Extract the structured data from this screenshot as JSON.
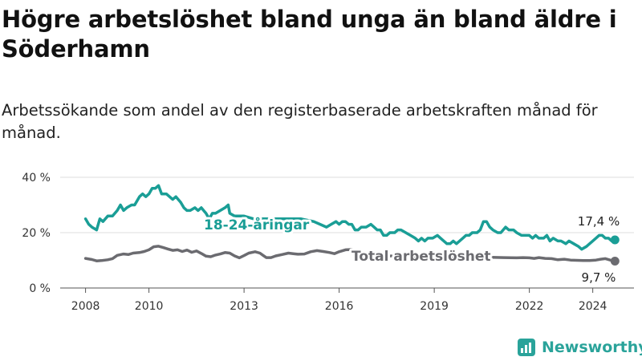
{
  "title": "Högre arbetslöshet bland unga än bland äldre i Söderhamn",
  "subtitle": "Arbetssökande som andel av den registerbaserade arbetskraften månad för månad.",
  "brand": "Newsworthy",
  "colors": {
    "youth": "#1a9e96",
    "total": "#6b6b70",
    "grid": "#dcdcdc",
    "brand": "#2aa39a"
  },
  "chart_data": {
    "type": "line",
    "x_tick_labels": [
      "2008",
      "2010",
      "2013",
      "2016",
      "2019",
      "2022",
      "2024"
    ],
    "x_tick_values": [
      2008,
      2010,
      2013,
      2016,
      2019,
      2022,
      2024
    ],
    "y_tick_labels": [
      "0 %",
      "20 %",
      "40 %"
    ],
    "y_tick_values": [
      0,
      20,
      40
    ],
    "xlim": [
      2007.2,
      2025.3
    ],
    "ylim": [
      0,
      40
    ],
    "grid": "horizontal",
    "end_labels": {
      "youth": "17,4 %",
      "total": "9,7 %"
    },
    "series": [
      {
        "key": "youth",
        "name": "18–24-åringar",
        "points": [
          [
            2008.0,
            25
          ],
          [
            2008.1,
            23
          ],
          [
            2008.2,
            22
          ],
          [
            2008.35,
            21
          ],
          [
            2008.45,
            25
          ],
          [
            2008.55,
            24
          ],
          [
            2008.7,
            26
          ],
          [
            2008.85,
            26
          ],
          [
            2009.0,
            28
          ],
          [
            2009.1,
            30
          ],
          [
            2009.2,
            28
          ],
          [
            2009.3,
            29
          ],
          [
            2009.45,
            30
          ],
          [
            2009.55,
            30
          ],
          [
            2009.7,
            33
          ],
          [
            2009.8,
            34
          ],
          [
            2009.9,
            33
          ],
          [
            2010.0,
            34
          ],
          [
            2010.1,
            36
          ],
          [
            2010.2,
            36
          ],
          [
            2010.3,
            37
          ],
          [
            2010.4,
            34
          ],
          [
            2010.55,
            34
          ],
          [
            2010.65,
            33
          ],
          [
            2010.75,
            32
          ],
          [
            2010.85,
            33
          ],
          [
            2011.0,
            31
          ],
          [
            2011.1,
            29
          ],
          [
            2011.2,
            28
          ],
          [
            2011.3,
            28
          ],
          [
            2011.45,
            29
          ],
          [
            2011.55,
            28
          ],
          [
            2011.65,
            29
          ],
          [
            2011.8,
            27
          ],
          [
            2011.9,
            25
          ],
          [
            2012.0,
            27
          ],
          [
            2012.1,
            27
          ],
          [
            2012.25,
            28
          ],
          [
            2012.4,
            29
          ],
          [
            2012.5,
            30
          ],
          [
            2012.55,
            27
          ],
          [
            2012.7,
            26
          ],
          [
            2013.0,
            26
          ],
          [
            2013.3,
            25
          ],
          [
            2013.6,
            25
          ],
          [
            2014.0,
            25
          ],
          [
            2014.4,
            25
          ],
          [
            2014.8,
            25
          ],
          [
            2015.2,
            24
          ],
          [
            2015.4,
            23
          ],
          [
            2015.6,
            22
          ],
          [
            2015.75,
            23
          ],
          [
            2015.9,
            24
          ],
          [
            2016.0,
            23
          ],
          [
            2016.1,
            24
          ],
          [
            2016.2,
            24
          ],
          [
            2016.3,
            23
          ],
          [
            2016.4,
            23
          ],
          [
            2016.5,
            21
          ],
          [
            2016.6,
            21
          ],
          [
            2016.7,
            22
          ],
          [
            2016.85,
            22
          ],
          [
            2017.0,
            23
          ],
          [
            2017.1,
            22
          ],
          [
            2017.2,
            21
          ],
          [
            2017.3,
            21
          ],
          [
            2017.4,
            19
          ],
          [
            2017.5,
            19
          ],
          [
            2017.6,
            20
          ],
          [
            2017.75,
            20
          ],
          [
            2017.85,
            21
          ],
          [
            2017.95,
            21
          ],
          [
            2018.1,
            20
          ],
          [
            2018.25,
            19
          ],
          [
            2018.4,
            18
          ],
          [
            2018.5,
            17
          ],
          [
            2018.6,
            18
          ],
          [
            2018.7,
            17
          ],
          [
            2018.8,
            18
          ],
          [
            2018.95,
            18
          ],
          [
            2019.1,
            19
          ],
          [
            2019.2,
            18
          ],
          [
            2019.3,
            17
          ],
          [
            2019.4,
            16
          ],
          [
            2019.5,
            16
          ],
          [
            2019.6,
            17
          ],
          [
            2019.7,
            16
          ],
          [
            2019.8,
            17
          ],
          [
            2019.9,
            18
          ],
          [
            2020.0,
            19
          ],
          [
            2020.1,
            19
          ],
          [
            2020.2,
            20
          ],
          [
            2020.35,
            20
          ],
          [
            2020.45,
            21
          ],
          [
            2020.55,
            24
          ],
          [
            2020.65,
            24
          ],
          [
            2020.75,
            22
          ],
          [
            2020.85,
            21
          ],
          [
            2021.0,
            20
          ],
          [
            2021.1,
            20
          ],
          [
            2021.25,
            22
          ],
          [
            2021.35,
            21
          ],
          [
            2021.5,
            21
          ],
          [
            2021.6,
            20
          ],
          [
            2021.75,
            19
          ],
          [
            2021.85,
            19
          ],
          [
            2022.0,
            19
          ],
          [
            2022.1,
            18
          ],
          [
            2022.2,
            19
          ],
          [
            2022.3,
            18
          ],
          [
            2022.45,
            18
          ],
          [
            2022.55,
            19
          ],
          [
            2022.65,
            17
          ],
          [
            2022.75,
            18
          ],
          [
            2022.9,
            17
          ],
          [
            2023.0,
            17
          ],
          [
            2023.15,
            16
          ],
          [
            2023.25,
            17
          ],
          [
            2023.4,
            16
          ],
          [
            2023.55,
            15
          ],
          [
            2023.65,
            14
          ],
          [
            2023.8,
            15
          ],
          [
            2023.9,
            16
          ],
          [
            2024.0,
            17
          ],
          [
            2024.1,
            18
          ],
          [
            2024.2,
            19
          ],
          [
            2024.3,
            19
          ],
          [
            2024.4,
            18
          ],
          [
            2024.5,
            18
          ],
          [
            2024.6,
            17
          ],
          [
            2024.7,
            17.4
          ]
        ]
      },
      {
        "key": "total",
        "name": "Total arbetslöshet",
        "points": [
          [
            2008.0,
            10.7
          ],
          [
            2008.2,
            10.3
          ],
          [
            2008.35,
            9.8
          ],
          [
            2008.5,
            9.9
          ],
          [
            2008.7,
            10.2
          ],
          [
            2008.85,
            10.6
          ],
          [
            2009.0,
            11.8
          ],
          [
            2009.2,
            12.3
          ],
          [
            2009.35,
            12.1
          ],
          [
            2009.5,
            12.6
          ],
          [
            2009.7,
            12.8
          ],
          [
            2009.85,
            13.2
          ],
          [
            2010.0,
            13.8
          ],
          [
            2010.15,
            14.9
          ],
          [
            2010.3,
            15.1
          ],
          [
            2010.45,
            14.6
          ],
          [
            2010.6,
            14.1
          ],
          [
            2010.75,
            13.6
          ],
          [
            2010.9,
            13.8
          ],
          [
            2011.05,
            13.2
          ],
          [
            2011.2,
            13.7
          ],
          [
            2011.35,
            12.9
          ],
          [
            2011.5,
            13.4
          ],
          [
            2011.65,
            12.5
          ],
          [
            2011.8,
            11.5
          ],
          [
            2011.95,
            11.3
          ],
          [
            2012.1,
            11.9
          ],
          [
            2012.25,
            12.3
          ],
          [
            2012.4,
            12.8
          ],
          [
            2012.55,
            12.6
          ],
          [
            2012.7,
            11.6
          ],
          [
            2012.85,
            10.9
          ],
          [
            2013.0,
            11.7
          ],
          [
            2013.15,
            12.6
          ],
          [
            2013.35,
            13.1
          ],
          [
            2013.5,
            12.6
          ],
          [
            2013.6,
            11.8
          ],
          [
            2013.7,
            11.0
          ],
          [
            2013.85,
            11.0
          ],
          [
            2014.0,
            11.6
          ],
          [
            2014.2,
            12.1
          ],
          [
            2014.4,
            12.6
          ],
          [
            2014.55,
            12.4
          ],
          [
            2014.7,
            12.2
          ],
          [
            2014.9,
            12.3
          ],
          [
            2015.1,
            13.1
          ],
          [
            2015.3,
            13.5
          ],
          [
            2015.5,
            13.2
          ],
          [
            2015.7,
            12.8
          ],
          [
            2015.85,
            12.4
          ],
          [
            2016.0,
            13.1
          ],
          [
            2016.2,
            13.8
          ],
          [
            2016.4,
            13.9
          ],
          [
            2016.55,
            13.2
          ],
          [
            2016.7,
            12.6
          ],
          [
            2016.85,
            12.3
          ],
          [
            2017.0,
            12.0
          ],
          [
            2017.3,
            11.8
          ],
          [
            2017.6,
            11.6
          ],
          [
            2018.0,
            11.5
          ],
          [
            2018.4,
            11.3
          ],
          [
            2018.8,
            11.2
          ],
          [
            2019.2,
            11.1
          ],
          [
            2019.6,
            11.0
          ],
          [
            2020.0,
            11.1
          ],
          [
            2020.4,
            11.2
          ],
          [
            2020.8,
            11.1
          ],
          [
            2021.2,
            11.0
          ],
          [
            2021.6,
            10.9
          ],
          [
            2021.8,
            11.0
          ],
          [
            2022.0,
            10.9
          ],
          [
            2022.15,
            10.7
          ],
          [
            2022.3,
            11.0
          ],
          [
            2022.5,
            10.7
          ],
          [
            2022.7,
            10.6
          ],
          [
            2022.9,
            10.2
          ],
          [
            2023.1,
            10.4
          ],
          [
            2023.3,
            10.1
          ],
          [
            2023.5,
            10.0
          ],
          [
            2023.7,
            9.9
          ],
          [
            2023.9,
            9.9
          ],
          [
            2024.1,
            10.1
          ],
          [
            2024.25,
            10.4
          ],
          [
            2024.4,
            10.6
          ],
          [
            2024.55,
            10.1
          ],
          [
            2024.7,
            9.7
          ]
        ]
      }
    ],
    "series_labels": [
      {
        "key": "youth",
        "text": "18-24-åringar"
      },
      {
        "key": "total",
        "text": "Total arbetslöshet"
      }
    ]
  }
}
